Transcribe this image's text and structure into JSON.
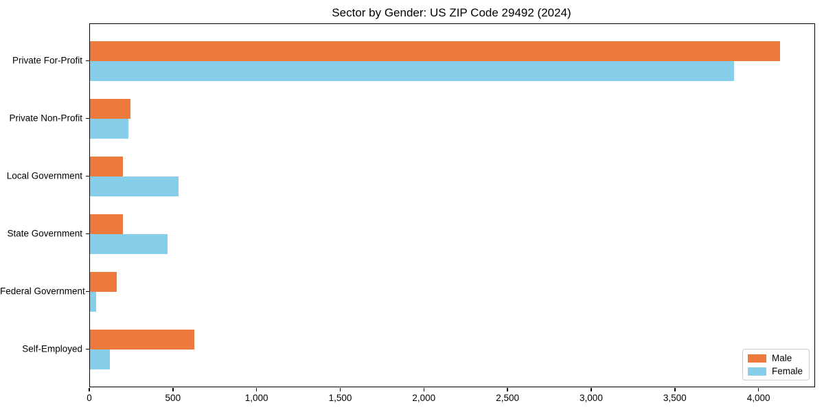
{
  "chart_data": {
    "type": "bar",
    "orientation": "horizontal",
    "title": "Sector by Gender: US ZIP Code 29492 (2024)",
    "xlabel": "",
    "ylabel": "",
    "categories": [
      "Private For-Profit",
      "Private Non-Profit",
      "Local Government",
      "State Government",
      "Federal Government",
      "Self-Employed"
    ],
    "series": [
      {
        "name": "Male",
        "color": "#ec7a3d",
        "values": [
          4125,
          240,
          195,
          195,
          160,
          625
        ]
      },
      {
        "name": "Female",
        "color": "#87ceeb",
        "values": [
          3850,
          230,
          530,
          465,
          35,
          120
        ]
      }
    ],
    "xlim": [
      0,
      4330
    ],
    "xticks": [
      0,
      500,
      1000,
      1500,
      2000,
      2500,
      3000,
      3500,
      4000
    ],
    "xtick_labels": [
      "0",
      "500",
      "1,000",
      "1,500",
      "2,000",
      "2,500",
      "3,000",
      "3,500",
      "4,000"
    ],
    "grid": false,
    "legend_position": "lower right"
  }
}
